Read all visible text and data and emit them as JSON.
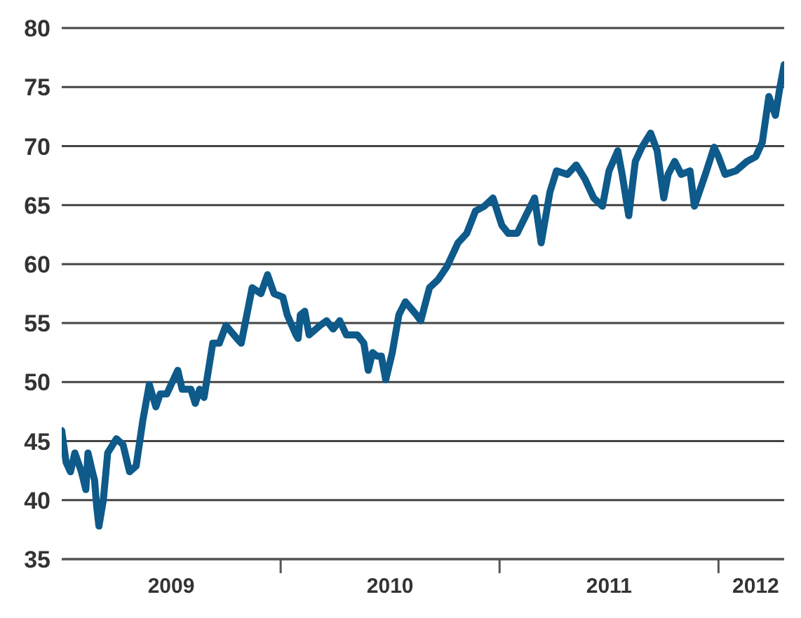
{
  "chart_data": {
    "type": "line",
    "x": [
      2009.0,
      2009.02,
      2009.04,
      2009.06,
      2009.09,
      2009.11,
      2009.12,
      2009.14,
      2009.15,
      2009.16,
      2009.17,
      2009.19,
      2009.21,
      2009.25,
      2009.28,
      2009.31,
      2009.34,
      2009.37,
      2009.4,
      2009.43,
      2009.45,
      2009.48,
      2009.53,
      2009.55,
      2009.59,
      2009.61,
      2009.63,
      2009.65,
      2009.69,
      2009.72,
      2009.75,
      2009.8,
      2009.82,
      2009.87,
      2009.91,
      2009.94,
      2009.97,
      2010.01,
      2010.03,
      2010.07,
      2010.08,
      2010.09,
      2010.11,
      2010.13,
      2010.18,
      2010.21,
      2010.24,
      2010.27,
      2010.3,
      2010.35,
      2010.38,
      2010.4,
      2010.42,
      2010.44,
      2010.46,
      2010.48,
      2010.51,
      2010.54,
      2010.57,
      2010.62,
      2010.64,
      2010.68,
      2010.72,
      2010.76,
      2010.81,
      2010.85,
      2010.89,
      2010.93,
      2010.97,
      2011.01,
      2011.04,
      2011.08,
      2011.12,
      2011.16,
      2011.19,
      2011.23,
      2011.26,
      2011.31,
      2011.35,
      2011.39,
      2011.43,
      2011.47,
      2011.5,
      2011.54,
      2011.56,
      2011.59,
      2011.62,
      2011.65,
      2011.69,
      2011.72,
      2011.75,
      2011.77,
      2011.8,
      2011.83,
      2011.87,
      2011.89,
      2011.94,
      2011.98,
      2012.0,
      2012.03,
      2012.08,
      2012.13,
      2012.17,
      2012.2,
      2012.23,
      2012.26,
      2012.28,
      2012.3
    ],
    "series": [
      {
        "color": "#0e5a8a",
        "values": [
          45.9,
          43.2,
          42.4,
          44.0,
          42.4,
          40.9,
          44.0,
          42.4,
          41.7,
          39.4,
          37.8,
          40.0,
          44.0,
          45.2,
          44.7,
          42.4,
          42.9,
          46.7,
          49.8,
          47.9,
          49.0,
          49.0,
          51.0,
          49.4,
          49.4,
          48.2,
          49.4,
          48.7,
          53.3,
          53.3,
          54.8,
          53.7,
          53.3,
          58.0,
          57.5,
          59.1,
          57.5,
          57.2,
          55.7,
          54.0,
          53.7,
          55.7,
          56.0,
          54.0,
          54.8,
          55.2,
          54.5,
          55.2,
          54.0,
          54.0,
          53.3,
          51.0,
          52.5,
          52.2,
          52.2,
          50.2,
          52.5,
          55.7,
          56.8,
          55.7,
          55.2,
          58.0,
          58.7,
          59.8,
          61.8,
          62.6,
          64.5,
          64.9,
          65.6,
          63.3,
          62.6,
          62.6,
          64.1,
          65.6,
          61.8,
          66.1,
          67.9,
          67.6,
          68.4,
          67.2,
          65.6,
          64.9,
          67.9,
          69.6,
          67.6,
          64.1,
          68.7,
          69.9,
          71.1,
          69.6,
          65.6,
          67.6,
          68.7,
          67.6,
          67.9,
          64.9,
          67.6,
          69.9,
          69.1,
          67.6,
          67.9,
          68.7,
          69.1,
          70.3,
          74.2,
          72.6,
          74.9,
          76.9
        ]
      }
    ],
    "xlim": [
      2009.0,
      2012.3
    ],
    "xticks": [
      {
        "value": 2009.5,
        "label": "2009"
      },
      {
        "value": 2010,
        "label": null
      },
      {
        "value": 2010.5,
        "label": "2010"
      },
      {
        "value": 2011,
        "label": null
      },
      {
        "value": 2011.5,
        "label": "2011"
      },
      {
        "value": 2012,
        "label": null
      },
      {
        "value": 2012.17,
        "label": "2012"
      }
    ],
    "ylim": [
      35,
      80
    ],
    "yticks": [
      35,
      40,
      45,
      50,
      55,
      60,
      65,
      70,
      75,
      80
    ],
    "grid": "y",
    "legend": false,
    "marker": "none",
    "line_style": "solid"
  }
}
